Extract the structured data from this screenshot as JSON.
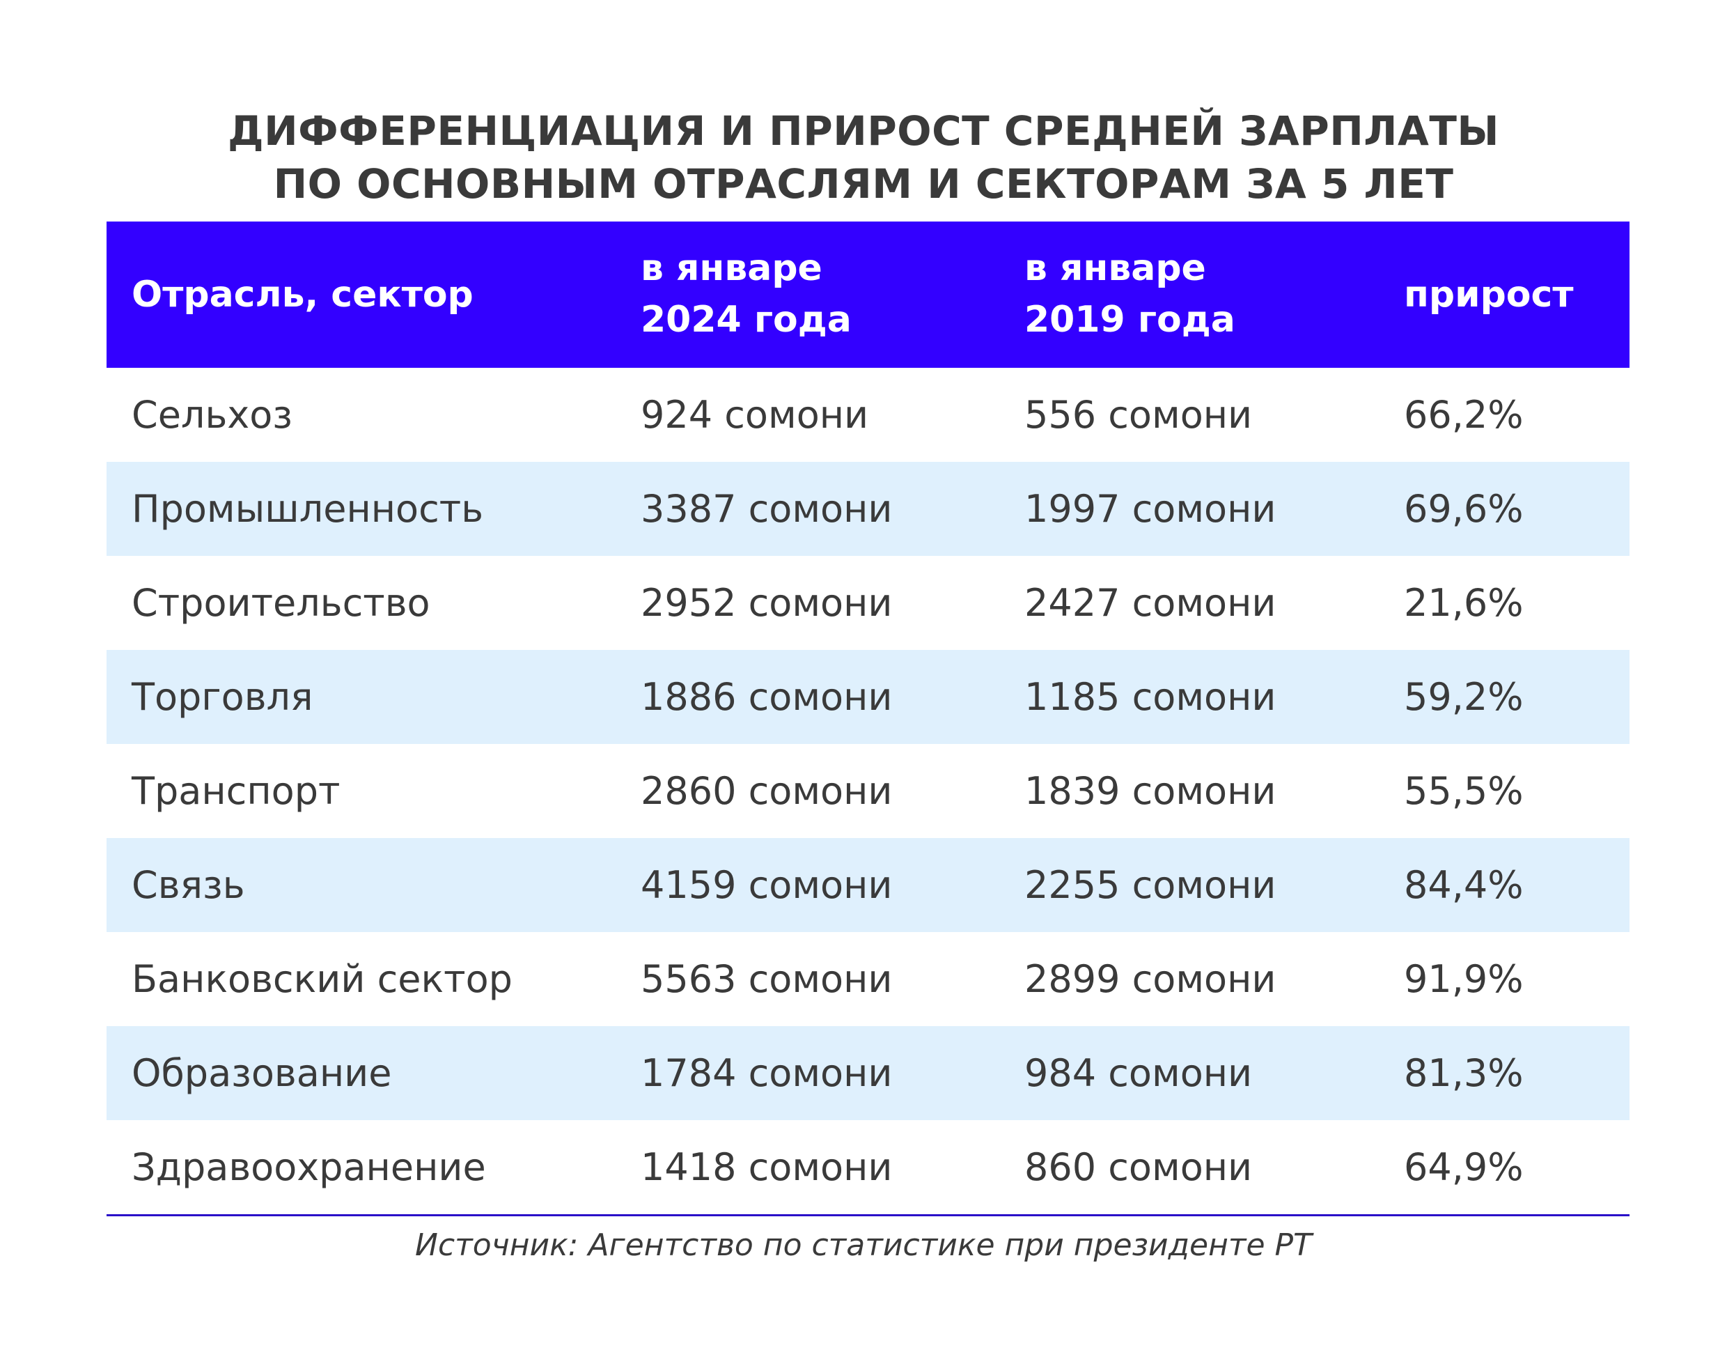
{
  "title": {
    "line1": "ДИФФЕРЕНЦИАЦИЯ И ПРИРОСТ СРЕДНЕЙ ЗАРПЛАТЫ",
    "line2": "ПО ОСНОВНЫМ ОТРАСЛЯМ И СЕКТОРАМ ЗА 5 ЛЕТ"
  },
  "colors": {
    "header_bg": "#3300ff",
    "alt_row": "#dff0fd",
    "rule": "#2a10c8"
  },
  "table": {
    "headers": [
      {
        "line1": "Отрасль, сектор",
        "line2": ""
      },
      {
        "line1": "в январе",
        "line2": "2024 года"
      },
      {
        "line1": "в январе",
        "line2": "2019 года"
      },
      {
        "line1": "прирост",
        "line2": ""
      }
    ],
    "rows": [
      [
        "Сельхоз",
        "924 сомони",
        "556 сомони",
        "66,2%"
      ],
      [
        "Промышленность",
        "3387 сомони",
        "1997 сомони",
        "69,6%"
      ],
      [
        "Строительство",
        "2952 сомони",
        "2427 сомони",
        "21,6%"
      ],
      [
        "Торговля",
        "1886 сомони",
        "1185 сомони",
        "59,2%"
      ],
      [
        "Транспорт",
        "2860 сомони",
        "1839 сомони",
        "55,5%"
      ],
      [
        "Связь",
        "4159 сомони",
        "2255 сомони",
        "84,4%"
      ],
      [
        "Банковский сектор",
        "5563 сомони",
        "2899 сомони",
        "91,9%"
      ],
      [
        "Образование",
        "1784 сомони",
        "984 сомони",
        "81,3%"
      ],
      [
        "Здравоохранение",
        "1418 сомони",
        "860 сомони",
        "64,9%"
      ]
    ]
  },
  "source": "Источник: Агентство по статистике при президенте РТ"
}
